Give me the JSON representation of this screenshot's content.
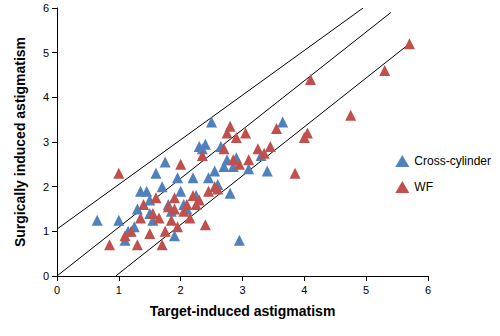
{
  "chart_data": {
    "type": "scatter",
    "x_label": "Target-induced astigmatism",
    "y_label": "Surgically induced astigmatism",
    "xlim": [
      0,
      6
    ],
    "xticks": [
      0,
      1,
      2,
      3,
      4,
      5,
      6
    ],
    "ylim": [
      0,
      6
    ],
    "yticks": [
      0,
      1,
      2,
      3,
      4,
      5,
      6
    ],
    "grid": false,
    "legend": "right",
    "series": [
      {
        "name": "Cross-cylinder",
        "color": "#4f81bd",
        "marker": "triangle",
        "x": [
          0.65,
          1.0,
          1.1,
          1.15,
          1.25,
          1.3,
          1.35,
          1.45,
          1.5,
          1.55,
          1.6,
          1.7,
          1.75,
          1.8,
          1.85,
          1.9,
          1.95,
          2.0,
          2.05,
          2.1,
          2.25,
          2.3,
          2.35,
          2.4,
          2.45,
          2.5,
          2.55,
          2.6,
          2.65,
          2.7,
          2.75,
          2.8,
          2.85,
          2.9,
          2.95,
          3.1,
          3.3,
          3.4,
          3.65,
          2.2,
          1.5
        ],
        "values": [
          1.25,
          1.25,
          0.8,
          1.0,
          1.1,
          1.5,
          1.9,
          1.9,
          1.4,
          1.25,
          2.3,
          2.0,
          2.55,
          1.6,
          1.45,
          0.9,
          2.2,
          1.9,
          1.6,
          1.5,
          1.8,
          2.9,
          2.85,
          2.95,
          2.2,
          3.45,
          2.35,
          2.05,
          2.9,
          2.45,
          2.6,
          1.85,
          2.45,
          2.65,
          0.8,
          2.4,
          2.7,
          2.35,
          3.45,
          2.2,
          1.7
        ]
      },
      {
        "name": "WF",
        "color": "#c0504d",
        "marker": "triangle",
        "x": [
          0.85,
          1.0,
          1.1,
          1.2,
          1.3,
          1.35,
          1.4,
          1.5,
          1.55,
          1.6,
          1.65,
          1.7,
          1.75,
          1.8,
          1.85,
          1.9,
          1.95,
          2.0,
          2.05,
          2.1,
          2.15,
          2.2,
          2.25,
          2.3,
          2.4,
          2.45,
          2.55,
          2.6,
          2.7,
          2.75,
          2.8,
          2.85,
          2.9,
          2.95,
          3.05,
          3.1,
          3.25,
          3.35,
          3.45,
          3.55,
          3.85,
          4.0,
          4.05,
          4.1,
          4.75,
          5.3,
          5.7,
          2.35,
          1.9
        ],
        "values": [
          0.7,
          2.3,
          0.9,
          1.0,
          0.7,
          1.3,
          1.6,
          0.95,
          1.4,
          1.75,
          1.3,
          0.7,
          1.0,
          1.55,
          1.25,
          1.5,
          1.1,
          2.5,
          1.45,
          1.6,
          1.3,
          1.8,
          1.6,
          1.7,
          1.15,
          1.9,
          2.0,
          1.95,
          2.85,
          3.2,
          3.35,
          2.6,
          3.1,
          2.5,
          3.2,
          2.6,
          2.85,
          2.75,
          2.9,
          3.3,
          2.3,
          3.1,
          3.2,
          4.4,
          3.6,
          4.6,
          5.2,
          2.7,
          1.75
        ]
      },
      {
        "type": "line",
        "color": "#000000",
        "x": [
          0,
          4.95
        ],
        "values": [
          1.05,
          6
        ]
      },
      {
        "type": "line",
        "color": "#000000",
        "x": [
          0,
          5.4
        ],
        "values": [
          0,
          5.9
        ]
      },
      {
        "type": "line",
        "color": "#000000",
        "x": [
          0.95,
          5.7
        ],
        "values": [
          0,
          5.2
        ]
      }
    ]
  }
}
